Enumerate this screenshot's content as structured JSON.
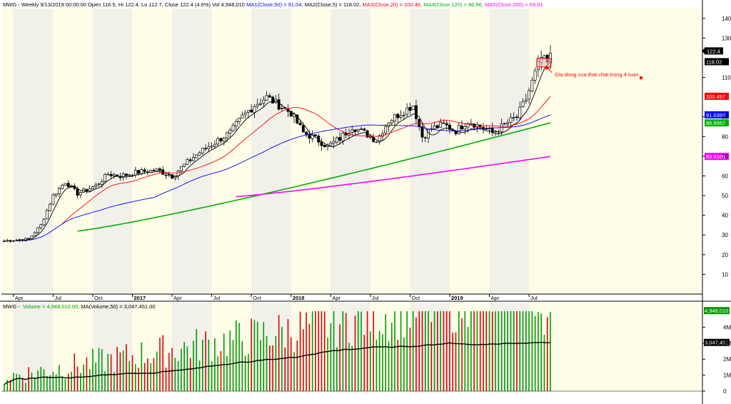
{
  "price_header": {
    "prefix": "MWG - Weekly 9/13/2019 00:00:00 Open 116.5, Hi 122.4, Lo 112.7, Close 122.4 (4.6%) Vol 4,948,010",
    "ma": [
      {
        "label": "MA1(Close,50) = 91.04,",
        "color": "#0000ff"
      },
      {
        "label": "MA2(Close,5) = 118.02,",
        "color": "#000000"
      },
      {
        "label": "MA3(Close,20) = 100.46,",
        "color": "#ff0000"
      },
      {
        "label": "MA4(Close,120) = 86.96,",
        "color": "#00b000"
      },
      {
        "label": "MA5(Close,200) = 69.91",
        "color": "#ff00ff"
      }
    ]
  },
  "volume_header": {
    "prefix": "MWG - ",
    "volume_label": "Volume = 4,948,010.00,",
    "volume_color": "#00a000",
    "ma_label": "MA(Volume,50) = 3,047,451.00"
  },
  "annotation": {
    "text": "Gia dong cua that chat trong 4 tuan",
    "color": "#ff0000"
  },
  "chart_data": [
    {
      "type": "candlestick",
      "title": "MWG - Weekly",
      "ylim": [
        0,
        145
      ],
      "y_ticks": [
        10,
        20,
        30,
        40,
        50,
        60,
        70,
        80,
        90,
        110,
        130,
        140
      ],
      "x_tick_labels": [
        {
          "label": "Apr",
          "x": 3
        },
        {
          "label": "Jul",
          "x": 16
        },
        {
          "label": "Oct",
          "x": 29
        },
        {
          "label": "2017",
          "x": 42
        },
        {
          "label": "Apr",
          "x": 55
        },
        {
          "label": "Jul",
          "x": 68
        },
        {
          "label": "Oct",
          "x": 81
        },
        {
          "label": "2018",
          "x": 94
        },
        {
          "label": "Apr",
          "x": 107
        },
        {
          "label": "Jul",
          "x": 120
        },
        {
          "label": "Oct",
          "x": 133
        },
        {
          "label": "2019",
          "x": 146
        },
        {
          "label": "Apr",
          "x": 159
        },
        {
          "label": "Jul",
          "x": 172
        }
      ],
      "last_index": 179,
      "price_anchors": [
        [
          0,
          27
        ],
        [
          8,
          28
        ],
        [
          12,
          35
        ],
        [
          16,
          50
        ],
        [
          20,
          57
        ],
        [
          24,
          51
        ],
        [
          30,
          55
        ],
        [
          34,
          61
        ],
        [
          38,
          60
        ],
        [
          44,
          62
        ],
        [
          50,
          63
        ],
        [
          55,
          60
        ],
        [
          60,
          67
        ],
        [
          64,
          72
        ],
        [
          68,
          76
        ],
        [
          74,
          82
        ],
        [
          78,
          90
        ],
        [
          82,
          96
        ],
        [
          86,
          100
        ],
        [
          90,
          96
        ],
        [
          94,
          92
        ],
        [
          98,
          82
        ],
        [
          102,
          79
        ],
        [
          106,
          75
        ],
        [
          110,
          79
        ],
        [
          114,
          85
        ],
        [
          118,
          82
        ],
        [
          122,
          78
        ],
        [
          126,
          88
        ],
        [
          130,
          92
        ],
        [
          134,
          96
        ],
        [
          137,
          80
        ],
        [
          140,
          84
        ],
        [
          144,
          86
        ],
        [
          148,
          83
        ],
        [
          152,
          88
        ],
        [
          156,
          85
        ],
        [
          160,
          82
        ],
        [
          164,
          86
        ],
        [
          168,
          90
        ],
        [
          171,
          99
        ],
        [
          174,
          112
        ],
        [
          176,
          120
        ],
        [
          178,
          117
        ],
        [
          179,
          122.4
        ]
      ],
      "series": [
        {
          "name": "MA1(Close,50)",
          "color": "#0000ff",
          "last_value": 91.0399,
          "value_label": "91.0399"
        },
        {
          "name": "MA2(Close,5)",
          "color": "#000000",
          "last_value": 118.02,
          "value_label": "118.02"
        },
        {
          "name": "MA3(Close,20)",
          "color": "#ff0000",
          "last_value": 100.457,
          "value_label": "100.457"
        },
        {
          "name": "MA4(Close,120)",
          "color": "#00b000",
          "last_value": 86.9567,
          "value_label": "86.9567"
        },
        {
          "name": "MA5(Close,200)",
          "color": "#ff00ff",
          "last_value": 69.9106,
          "value_label": "69.9106"
        }
      ],
      "last_close": 122.4,
      "last_close_label": "122.4"
    },
    {
      "type": "bar",
      "title": "MWG - Volume",
      "ylim": [
        0,
        5000000
      ],
      "y_ticks": [
        {
          "v": 0,
          "label": "0"
        },
        {
          "v": 1000000,
          "label": "1M"
        },
        {
          "v": 2000000,
          "label": "2M"
        },
        {
          "v": 3000000,
          "label": "3M"
        },
        {
          "v": 4000000,
          "label": "4M"
        }
      ],
      "last_volume": 4948010,
      "last_volume_label": "4,948,010",
      "ma_value": 3047451,
      "ma_value_label": "3,047,451",
      "up_color": "#009900",
      "down_color": "#dd0000",
      "ma_color": "#000000"
    }
  ]
}
